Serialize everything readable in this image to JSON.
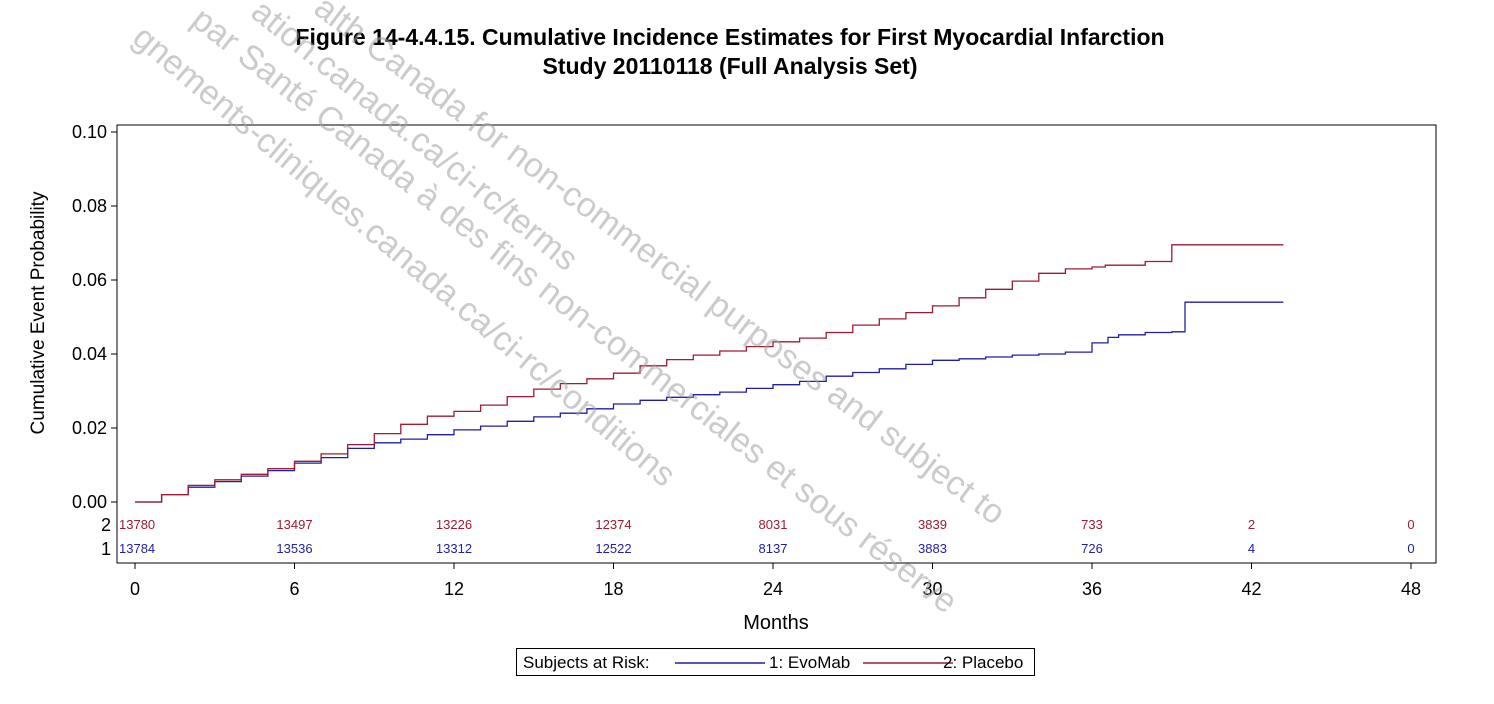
{
  "title_lines": [
    "Figure 14-4.4.15.  Cumulative Incidence Estimates for First Myocardial Infarction",
    "Study 20110118 (Full Analysis Set)"
  ],
  "watermark_lines": [
    "par Santé Canada à des fins non-commerciales et sous réserve",
    "gnements-cliniques.canada.ca/ci-rc/conditions",
    "ation.canada.ca/ci-rc/terms",
    "alth Canada for non-commercial purposes and subject to"
  ],
  "legend": {
    "title": "Subjects at Risk:",
    "entries": [
      "1: EvoMab",
      "2: Placebo"
    ]
  },
  "colors": {
    "evomab": "#1f1fa8",
    "placebo": "#9e1b32"
  },
  "chart_data": {
    "type": "line",
    "xlabel": "Months",
    "ylabel": "Cumulative Event Probability",
    "xlim": [
      0,
      48
    ],
    "ylim": [
      0,
      0.1
    ],
    "xticks": [
      "0",
      "6",
      "12",
      "18",
      "24",
      "30",
      "36",
      "42",
      "48"
    ],
    "yticks": [
      "0.00",
      "0.02",
      "0.04",
      "0.06",
      "0.08",
      "0.10"
    ],
    "series": [
      {
        "name": "1: EvoMab",
        "risk_label": "1",
        "x": [
          0,
          1,
          2,
          3,
          4,
          5,
          6,
          7,
          8,
          9,
          10,
          11,
          12,
          13,
          14,
          15,
          16,
          17,
          18,
          19,
          20,
          21,
          22,
          23,
          24,
          25,
          26,
          27,
          28,
          29,
          30,
          31,
          32,
          33,
          34,
          35,
          36,
          36.6,
          37,
          38,
          39,
          39.5,
          40,
          41,
          42,
          43,
          43.2
        ],
        "y": [
          0,
          0.002,
          0.004,
          0.0055,
          0.007,
          0.0085,
          0.0105,
          0.012,
          0.0145,
          0.016,
          0.017,
          0.0182,
          0.0195,
          0.0205,
          0.0218,
          0.023,
          0.024,
          0.0252,
          0.0265,
          0.0275,
          0.0283,
          0.029,
          0.0297,
          0.0307,
          0.0317,
          0.0326,
          0.034,
          0.035,
          0.036,
          0.0372,
          0.0383,
          0.0387,
          0.0392,
          0.0397,
          0.04,
          0.0405,
          0.043,
          0.0445,
          0.0452,
          0.0458,
          0.046,
          0.054,
          0.054,
          0.054,
          0.054,
          0.054,
          0.054
        ],
        "at_risk": [
          "13784",
          "13536",
          "13312",
          "12522",
          "8137",
          "3883",
          "726",
          "4",
          "0"
        ]
      },
      {
        "name": "2: Placebo",
        "risk_label": "2",
        "x": [
          0,
          1,
          2,
          3,
          4,
          5,
          6,
          7,
          8,
          9,
          10,
          11,
          12,
          13,
          14,
          15,
          16,
          17,
          18,
          19,
          20,
          21,
          22,
          23,
          24,
          25,
          26,
          27,
          28,
          29,
          30,
          31,
          32,
          33,
          34,
          35,
          36,
          36.5,
          38,
          39,
          40,
          41,
          42,
          43.2
        ],
        "y": [
          0,
          0.002,
          0.0045,
          0.006,
          0.0075,
          0.009,
          0.011,
          0.013,
          0.0155,
          0.0185,
          0.021,
          0.0232,
          0.0245,
          0.0262,
          0.0285,
          0.0305,
          0.032,
          0.0333,
          0.0348,
          0.0368,
          0.0385,
          0.0397,
          0.0408,
          0.042,
          0.0433,
          0.0443,
          0.0458,
          0.0478,
          0.0495,
          0.0512,
          0.053,
          0.0552,
          0.0575,
          0.0597,
          0.0618,
          0.063,
          0.0635,
          0.064,
          0.065,
          0.0695,
          0.0695,
          0.0695,
          0.0695,
          0.0695
        ],
        "at_risk": [
          "13780",
          "13497",
          "13226",
          "12374",
          "8031",
          "3839",
          "733",
          "2",
          "0"
        ]
      }
    ],
    "grid": false,
    "legend_position": "bottom"
  }
}
